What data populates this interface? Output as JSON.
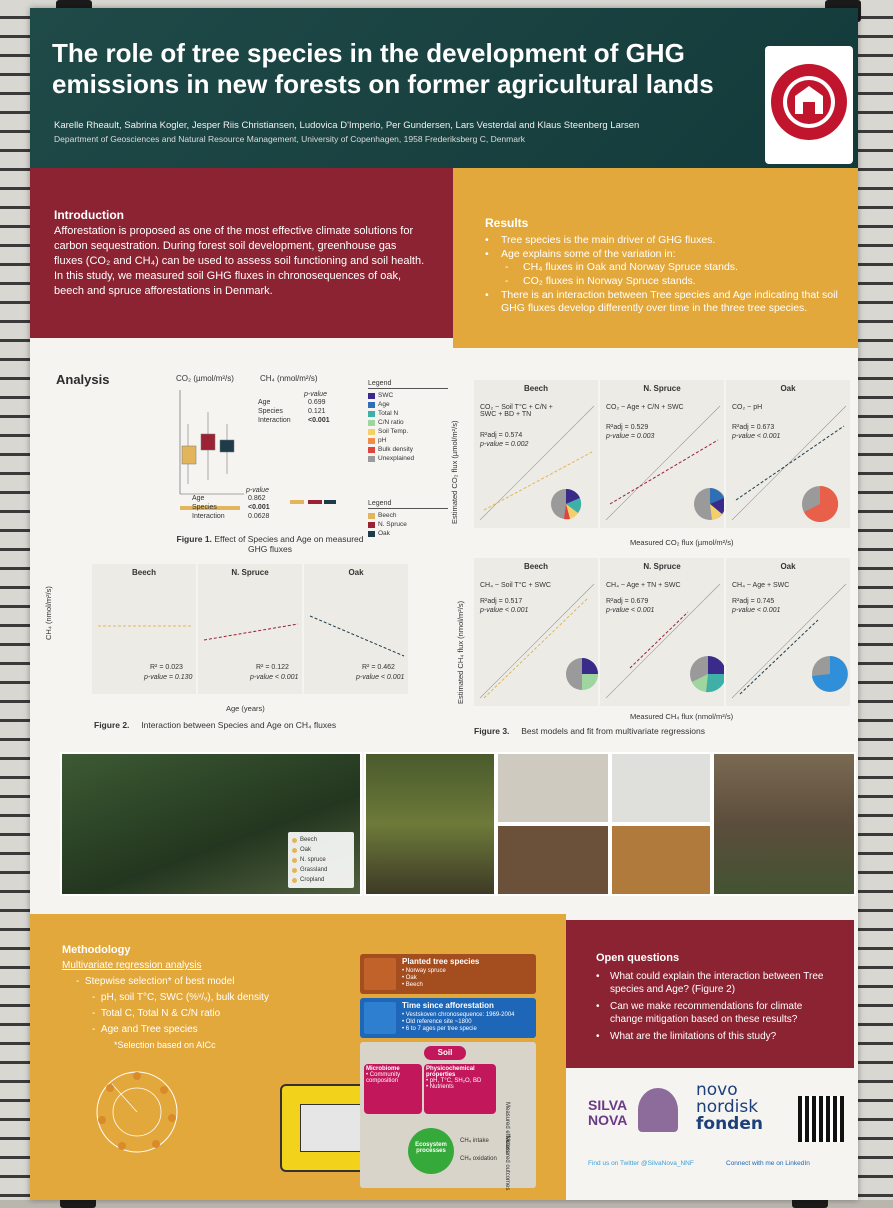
{
  "poster": {
    "title": "The role of tree species in the development of GHG emissions in new forests on former agricultural lands",
    "authors": "Karelle Rheault, Sabrina Kogler, Jesper Riis Christiansen, Ludovica D'Imperio, Per Gundersen, Lars Vesterdal and Klaus Steenberg Larsen",
    "affiliation": "Department of Geosciences and Natural Resource Management, University of Copenhagen, 1958 Frederiksberg C, Denmark",
    "seal_text": "SIGILLUM UNIVERSITATIS HAFNIENSIS"
  },
  "intro": {
    "heading": "Introduction",
    "body": "Afforestation is proposed as one of the most effective climate solutions for carbon sequestration. During forest soil development, greenhouse gas fluxes (CO₂ and CH₄) can be used to assess soil functioning and soil health. In this study, we measured soil GHG fluxes in chronosequences of oak, beech and spruce afforestations in Denmark."
  },
  "results": {
    "heading": "Results",
    "items": [
      {
        "bullet": "•",
        "text": "Tree species is the main driver of GHG fluxes."
      },
      {
        "bullet": "•",
        "text": "Age explains some of the variation in:"
      },
      {
        "bullet": "-",
        "text": "CH₄ fluxes in Oak and Norway Spruce stands."
      },
      {
        "bullet": "-",
        "text": "CO₂ fluxes in Norway Spruce stands."
      },
      {
        "bullet": "•",
        "text": "There is an interaction between Tree species and Age indicating that soil GHG fluxes develop differently over time in the three tree species."
      }
    ]
  },
  "analysis": {
    "heading": "Analysis",
    "fig1": {
      "co2_title": "CO₂ (µmol/m²/s)",
      "ch4_title": "CH₄ (nmol/m²/s)",
      "pvalue_label": "p-value",
      "top_stats": [
        {
          "label": "Age",
          "value": "0.699"
        },
        {
          "label": "Species",
          "value": "0.121"
        },
        {
          "label": "Interaction",
          "value": "<0.001"
        }
      ],
      "bottom_stats": [
        {
          "label": "Age",
          "value": "0.862"
        },
        {
          "label": "Species",
          "value": "<0.001"
        },
        {
          "label": "Interaction",
          "value": "0.0628"
        }
      ],
      "legend1_title": "Legend",
      "legend1": [
        {
          "label": "SWC",
          "color": "#3a2a8a"
        },
        {
          "label": "Age",
          "color": "#2f6fb5"
        },
        {
          "label": "Total N",
          "color": "#3fb0a8"
        },
        {
          "label": "C/N ratio",
          "color": "#9fd6a0"
        },
        {
          "label": "Soil Temp.",
          "color": "#f4d06a"
        },
        {
          "label": "pH",
          "color": "#f28c4a"
        },
        {
          "label": "Bulk density",
          "color": "#e0443a"
        },
        {
          "label": "Unexplained",
          "color": "#9a9a9a"
        }
      ],
      "legend2_title": "Legend",
      "legend2": [
        {
          "label": "Beech",
          "color": "#e2b55c"
        },
        {
          "label": "N. Spruce",
          "color": "#9b2234"
        },
        {
          "label": "Oak",
          "color": "#1d3c48"
        }
      ],
      "caption_num": "Figure 1.",
      "caption": "Effect of Species and Age on measured GHG fluxes"
    },
    "fig2": {
      "panels": [
        {
          "name": "Beech",
          "r2": "R² = 0.023",
          "p": "p-value = 0.130"
        },
        {
          "name": "N. Spruce",
          "r2": "R² = 0.122",
          "p": "p-value < 0.001"
        },
        {
          "name": "Oak",
          "r2": "R² = 0.462",
          "p": "p-value < 0.001"
        }
      ],
      "ylabel": "CH₄ (nmol/m²/s)",
      "xlabel": "Age (years)",
      "caption_num": "Figure 2.",
      "caption": "Interaction between Species and Age on CH₄ fluxes"
    },
    "fig3": {
      "co2_panels": [
        {
          "name": "Beech",
          "model": "CO₂ ~ Soil T°C + C/N + SWC + BD + TN",
          "r2": "R²adj = 0.574",
          "p": "p-value = 0.002"
        },
        {
          "name": "N. Spruce",
          "model": "CO₂ ~ Age + C/N + SWC",
          "r2": "R²adj = 0.529",
          "p": "p-value = 0.003"
        },
        {
          "name": "Oak",
          "model": "CO₂ ~ pH",
          "r2": "R²adj = 0.673",
          "p": "p-value < 0.001"
        }
      ],
      "ch4_panels": [
        {
          "name": "Beech",
          "model": "CH₄ ~ Soil T°C + SWC",
          "r2": "R²adj = 0.517",
          "p": "p-value < 0.001"
        },
        {
          "name": "N. Spruce",
          "model": "CH₄ ~ Age + TN + SWC",
          "r2": "R²adj = 0.679",
          "p": "p-value < 0.001"
        },
        {
          "name": "Oak",
          "model": "CH₄ ~ Age + SWC",
          "r2": "R²adj = 0.745",
          "p": "p-value < 0.001"
        }
      ],
      "co2_ylabel": "Estimated CO₂ flux (µmol/m²/s)",
      "co2_xlabel": "Measured CO₂ flux (µmol/m²/s)",
      "ch4_ylabel": "Estimated CH₄ flux (nmol/m²/s)",
      "ch4_xlabel": "Measured CH₄ flux (nmol/m²/s)",
      "caption_num": "Figure 3.",
      "caption": "Best models and fit from multivariate regressions"
    }
  },
  "map_legend": [
    "Beech",
    "Oak",
    "N. spruce",
    "Grassland",
    "Cropland"
  ],
  "methodology": {
    "heading": "Methodology",
    "subheading": "Multivariate regression analysis",
    "items": [
      {
        "bullet": "-",
        "text": "Stepwise selection* of best model"
      },
      {
        "bullet": "-",
        "text": "pH, soil T°C, SWC (%ᵛ/ᵥ), bulk density"
      },
      {
        "bullet": "-",
        "text": "Total C, Total N & C/N ratio"
      },
      {
        "bullet": "-",
        "text": "Age and Tree species"
      }
    ],
    "note": "*Selection based on AICc",
    "planted": {
      "title": "Planted tree species",
      "items": [
        "• Norway spruce",
        "• Oak",
        "• Beech"
      ]
    },
    "time": {
      "title": "Time since afforestation",
      "items": [
        "• Vestskoven chronosequence: 1969-2004",
        "• Old reference site ~1800",
        "• 6 to 7 ages per tree specie"
      ]
    },
    "diagram": {
      "soil": "Soil",
      "microbiome": "Microbiome",
      "microbiome_sub": "• Community composition",
      "physchem": "Physicochemical properties",
      "physchem_sub": "• pH, T°C, SH₂O, BD",
      "nutrients": "• Nutrients",
      "measured_effectors": "Measured effectors",
      "ecosystem": "Ecosystem processes",
      "ch4_uptake": "CH₄ intake",
      "ch4_ox": "CH₄ oxidation",
      "measured_outcomes": "Measured outcomes"
    }
  },
  "open_questions": {
    "heading": "Open questions",
    "items": [
      "What could explain the interaction between Tree species and Age? (Figure 2)",
      "Can we make recommendations for climate change mitigation based on these results?",
      "What are the limitations of this study?"
    ]
  },
  "footer": {
    "silva_1": "SILVA",
    "silva_2": "NOVA",
    "novo_1": "novo",
    "novo_2": "nordisk",
    "novo_3": "fonden",
    "twitter": "Find us on Twitter @SilvaNova_NNF",
    "linkedin": "Connect with me on LinkedIn"
  }
}
